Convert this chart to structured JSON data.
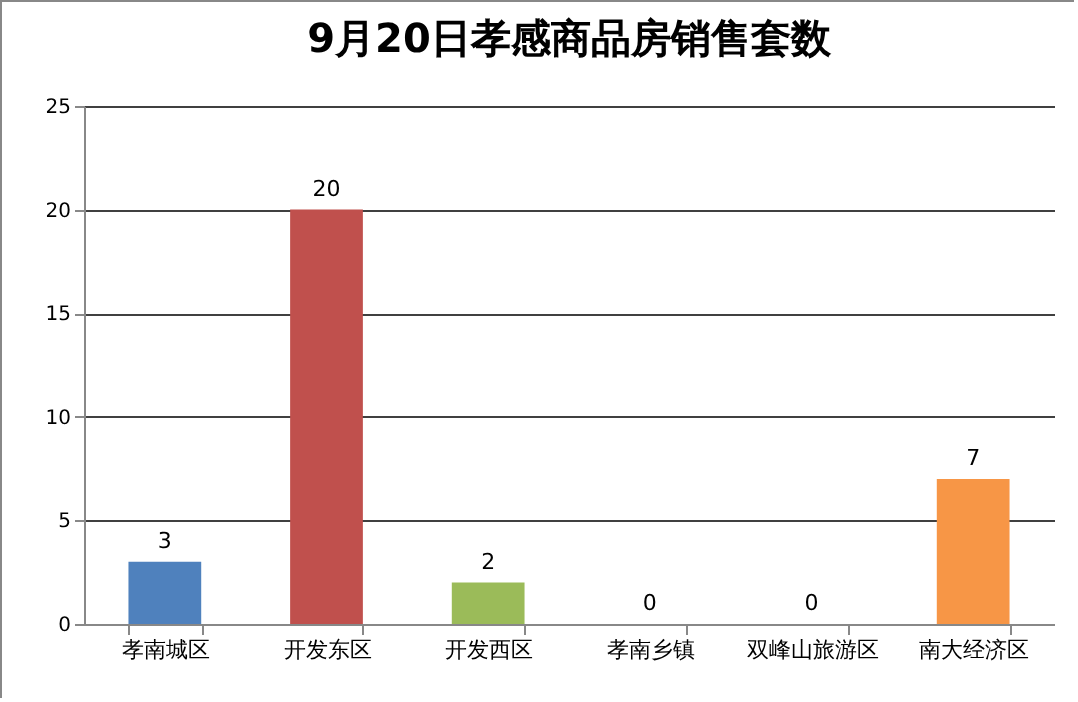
{
  "chart_data": {
    "type": "bar",
    "title": "9月20日孝感商品房销售套数",
    "categories": [
      "孝南城区",
      "开发东区",
      "开发西区",
      "孝南乡镇",
      "双峰山旅游区",
      "南大经济区"
    ],
    "values": [
      3,
      20,
      2,
      0,
      0,
      7
    ],
    "colors": [
      "#4f81bd",
      "#c0504d",
      "#9bbb59",
      "#8064a2",
      "#4bacc6",
      "#f79646"
    ],
    "ylim": [
      0,
      25
    ],
    "yticks": [
      0,
      5,
      10,
      15,
      20,
      25
    ],
    "grid": "y",
    "data_labels": true
  }
}
